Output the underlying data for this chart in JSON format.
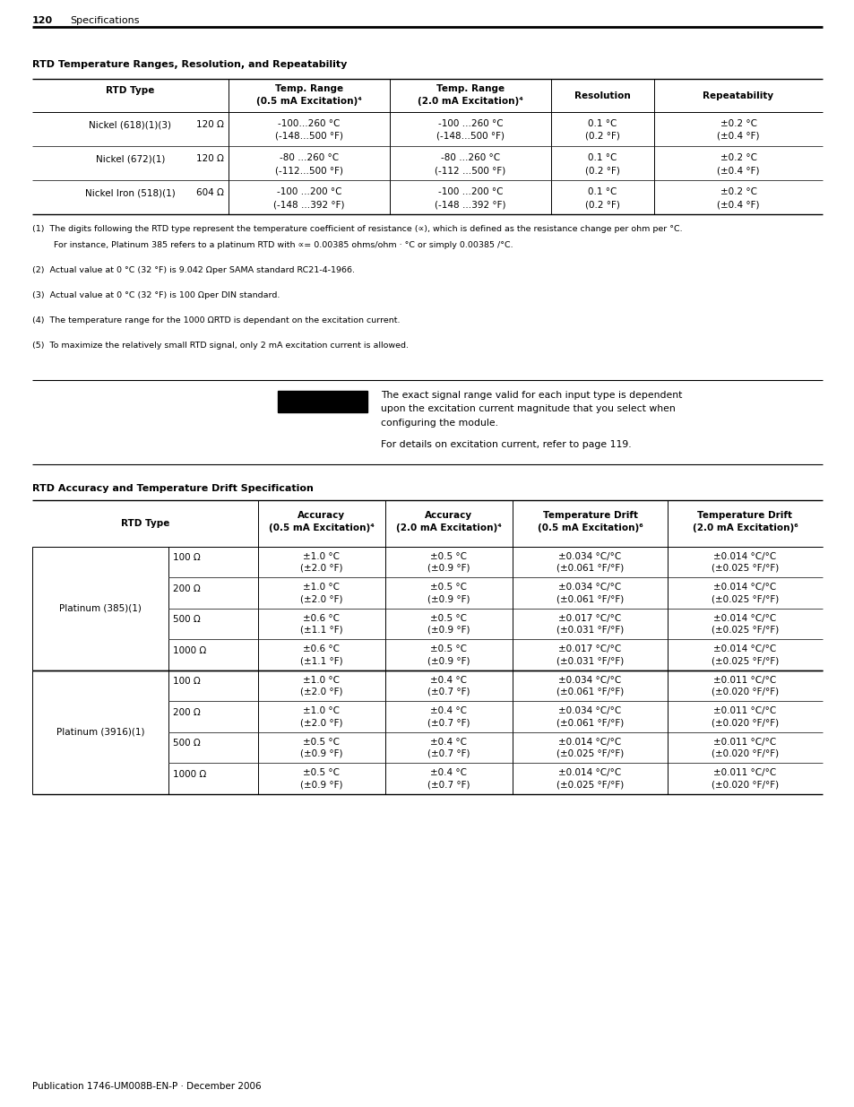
{
  "page_num": "120",
  "page_label": "Specifications",
  "publication": "Publication 1746-UM008B-EN-P · December 2006",
  "table1_title": "RTD Temperature Ranges, Resolution, and Repeatability",
  "table2_title": "RTD Accuracy and Temperature Drift Specification",
  "footnote1_super": "(1)",
  "footnote1_text": "   The digits following the RTD type represent the temperature coefficient of resistance (∝), which is defined as the resistance change per ohm per °C.\n        For instance, Platinum 385 refers to a platinum RTD with ∝= 0.00385 ohms/ohm · °C or simply 0.00385 /°C.",
  "footnote2_super": "(2)",
  "footnote2_text": "   Actual value at 0 °C (32 °F) is 9.042 Ωper SAMA standard RC21-4-1966.",
  "footnote3_super": "(3)",
  "footnote3_text": "   Actual value at 0 °C (32 °F) is 100 Ωper DIN standard.",
  "footnote4_super": "(4)",
  "footnote4_text": "   The temperature range for the 1000 ΩRTD is dependant on the excitation current.",
  "footnote5_super": "(5)",
  "footnote5_text": "   To maximize the relatively small RTD signal, only 2 mA excitation current is allowed.",
  "important_line1": "The exact signal range valid for each input type is dependent",
  "important_line2": "upon the excitation current magnitude that you select when",
  "important_line3": "configuring the module.",
  "important_line4": "For details on excitation current, refer to page 119."
}
